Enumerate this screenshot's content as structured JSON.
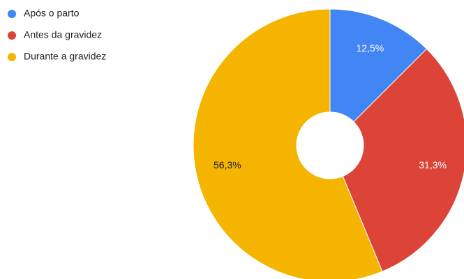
{
  "chart_data": {
    "type": "donut",
    "categories": [
      "Após o parto",
      "Antes da gravidez",
      "Durante a gravidez"
    ],
    "values": [
      12.5,
      31.3,
      56.3
    ],
    "value_labels": [
      "12,5%",
      "31,3%",
      "56,3%"
    ],
    "colors": [
      "#4285f4",
      "#db4437",
      "#f4b400"
    ],
    "legend": "top-left"
  }
}
